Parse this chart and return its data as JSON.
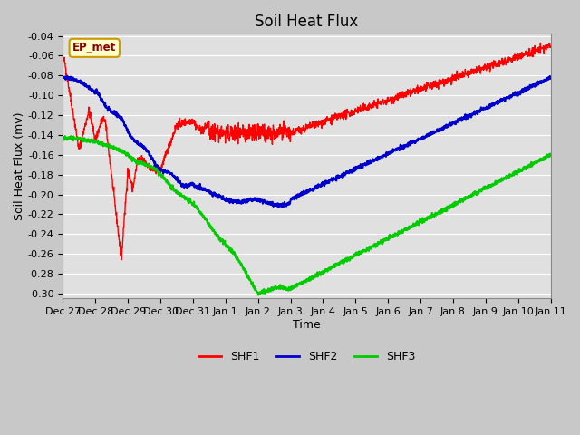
{
  "title": "Soil Heat Flux",
  "xlabel": "Time",
  "ylabel": "Soil Heat Flux (mv)",
  "ylim": [
    -0.305,
    -0.038
  ],
  "yticks": [
    -0.3,
    -0.28,
    -0.26,
    -0.24,
    -0.22,
    -0.2,
    -0.18,
    -0.16,
    -0.14,
    -0.12,
    -0.1,
    -0.08,
    -0.06,
    -0.04
  ],
  "xtick_labels": [
    "Dec 27",
    "Dec 28",
    "Dec 29",
    "Dec 30",
    "Dec 31",
    "Jan 1",
    "Jan 2",
    "Jan 3",
    "Jan 4",
    "Jan 5",
    "Jan 6",
    "Jan 7",
    "Jan 8",
    "Jan 9",
    "Jan 10",
    "Jan 11"
  ],
  "line_colors": {
    "SHF1": "#ff0000",
    "SHF2": "#0000cc",
    "SHF3": "#00cc00"
  },
  "line_widths": {
    "SHF1": 1.0,
    "SHF2": 1.5,
    "SHF3": 1.5
  },
  "legend_label": "EP_met",
  "legend_box_color": "#ffffcc",
  "legend_box_edge": "#cc9900",
  "fig_bg_color": "#c8c8c8",
  "plot_bg_color": "#e0e0e0",
  "grid_color": "#ffffff",
  "title_fontsize": 12,
  "axis_label_fontsize": 9,
  "tick_fontsize": 8
}
